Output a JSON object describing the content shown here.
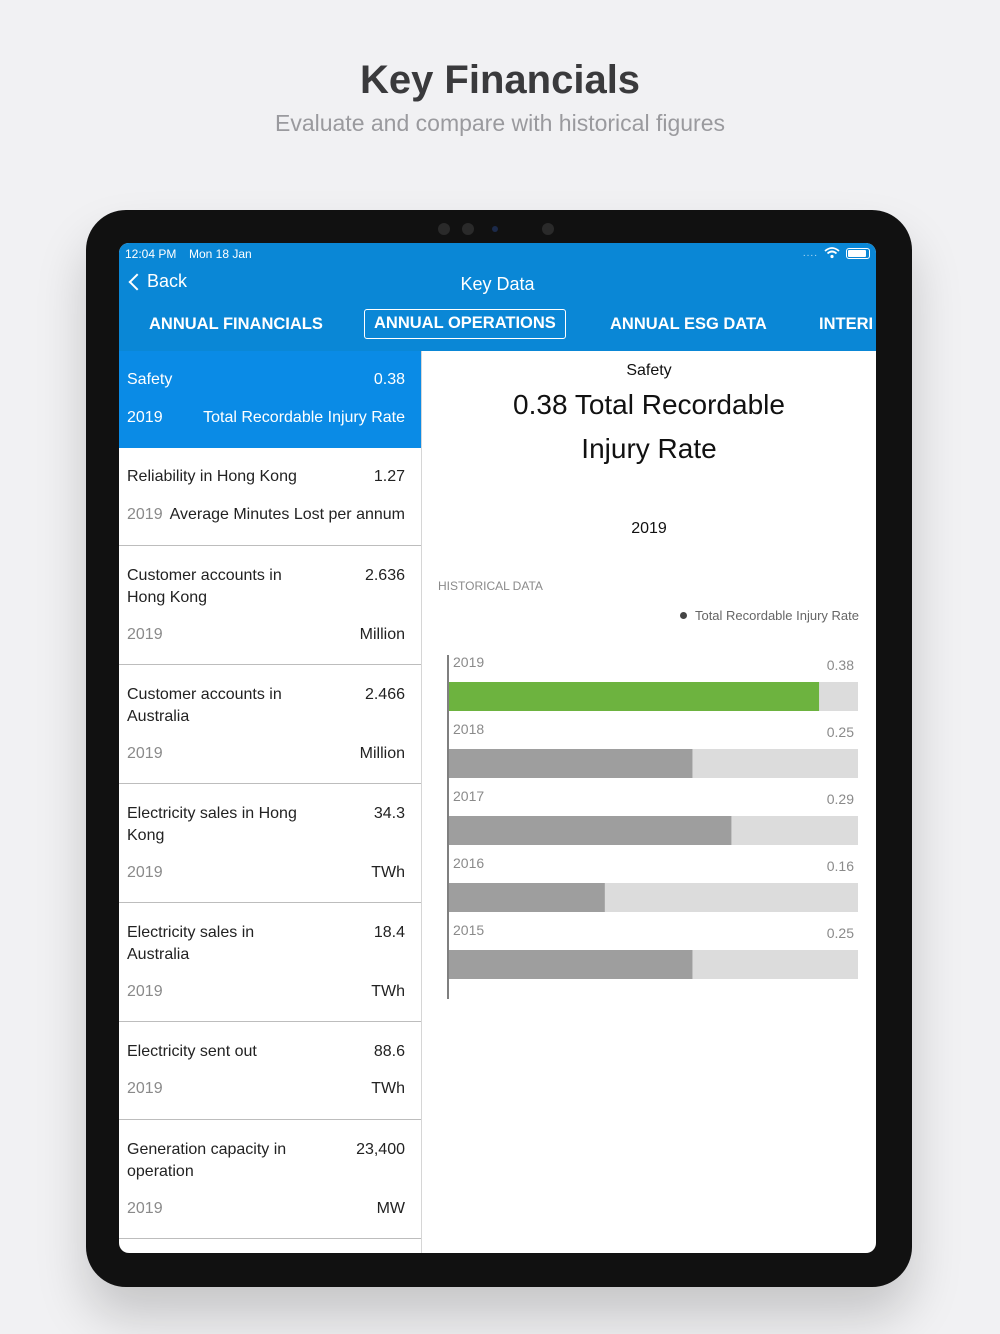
{
  "promo": {
    "title": "Key Financials",
    "subtitle": "Evaluate and compare with historical figures"
  },
  "status_bar": {
    "time": "12:04 PM",
    "date": "Mon 18 Jan",
    "signal": "....",
    "wifi_icon": "wifi-icon",
    "battery_icon": "battery-icon"
  },
  "nav": {
    "back_label": "Back",
    "title": "Key Data"
  },
  "tabs": [
    {
      "label": "ANNUAL FINANCIALS",
      "active": false
    },
    {
      "label": "ANNUAL OPERATIONS",
      "active": true
    },
    {
      "label": "ANNUAL ESG DATA",
      "active": false
    },
    {
      "label": "INTERI",
      "active": false
    }
  ],
  "list_items": [
    {
      "name": "Safety",
      "value": "0.38",
      "year": "2019",
      "unit": "Total Recordable Injury Rate",
      "selected": true
    },
    {
      "name": "Reliability in Hong Kong",
      "value": "1.27",
      "year": "2019",
      "unit": "Average Minutes Lost per annum",
      "selected": false
    },
    {
      "name": "Customer accounts in Hong Kong",
      "value": "2.636",
      "year": "2019",
      "unit": "Million",
      "selected": false
    },
    {
      "name": "Customer accounts in Australia",
      "value": "2.466",
      "year": "2019",
      "unit": "Million",
      "selected": false
    },
    {
      "name": "Electricity sales in Hong Kong",
      "value": "34.3",
      "year": "2019",
      "unit": "TWh",
      "selected": false
    },
    {
      "name": "Electricity sales in Australia",
      "value": "18.4",
      "year": "2019",
      "unit": "TWh",
      "selected": false
    },
    {
      "name": "Electricity sent out",
      "value": "88.6",
      "year": "2019",
      "unit": "TWh",
      "selected": false
    },
    {
      "name": "Generation capacity in operation",
      "value": "23,400",
      "year": "2019",
      "unit": "MW",
      "selected": false
    }
  ],
  "detail": {
    "category": "Safety",
    "headline": "0.38 Total Recordable Injury Rate",
    "year": "2019",
    "historical_label": "HISTORICAL DATA",
    "legend_label": "Total Recordable Injury Rate"
  },
  "chart_data": {
    "type": "bar",
    "orientation": "horizontal",
    "categories": [
      "2019",
      "2018",
      "2017",
      "2016",
      "2015"
    ],
    "values": [
      0.38,
      0.25,
      0.29,
      0.16,
      0.25
    ],
    "value_labels": [
      "0.38",
      "0.25",
      "0.29",
      "0.16",
      "0.25"
    ],
    "series": [
      {
        "name": "Total Recordable Injury Rate",
        "values": [
          0.38,
          0.25,
          0.29,
          0.16,
          0.25
        ]
      }
    ],
    "xlim": [
      0,
      0.42
    ],
    "colors": {
      "highlight": "#6db33f",
      "bar": "#9e9e9e",
      "track": "#dcdcdc",
      "label": "#8a8a8a"
    }
  }
}
